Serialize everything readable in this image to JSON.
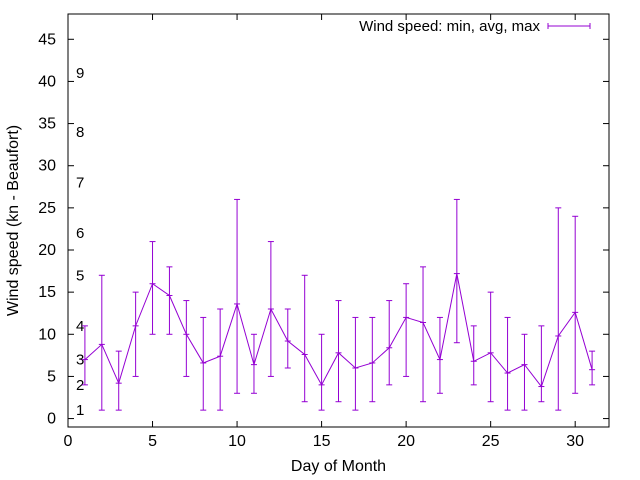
{
  "chart_data": {
    "type": "line",
    "title": "",
    "xlabel": "Day of Month",
    "ylabel": "Wind speed (kn - Beaufort)",
    "xlim": [
      0,
      32
    ],
    "ylim": [
      -1,
      48
    ],
    "xticks": [
      0,
      5,
      10,
      15,
      20,
      25,
      30
    ],
    "yticks": [
      0,
      5,
      10,
      15,
      20,
      25,
      30,
      35,
      40,
      45
    ],
    "grid": false,
    "legend_position": "top-right",
    "colors": {
      "series": "#9400d3",
      "axis": "#000000"
    },
    "series": [
      {
        "name": "Wind speed: min, avg, max",
        "x": [
          1,
          2,
          3,
          4,
          5,
          6,
          7,
          8,
          9,
          10,
          11,
          12,
          13,
          14,
          15,
          16,
          17,
          18,
          19,
          20,
          21,
          22,
          23,
          24,
          25,
          26,
          27,
          28,
          29,
          30,
          31
        ],
        "avg": [
          7.0,
          8.8,
          4.2,
          11,
          16,
          14.6,
          10,
          6.6,
          7.4,
          13.6,
          6.4,
          13,
          9.2,
          7.6,
          4.0,
          7.8,
          6.0,
          6.6,
          8.4,
          12.0,
          11.4,
          7.0,
          17.2,
          6.8,
          7.8,
          5.4,
          6.4,
          3.8,
          9.8,
          12.6,
          5.8
        ],
        "min": [
          4,
          1,
          1,
          5,
          10,
          10,
          5,
          1,
          1,
          3,
          3,
          5,
          6,
          2,
          1,
          2,
          1,
          2,
          4,
          5,
          2,
          3,
          9,
          4,
          2,
          1,
          1,
          2,
          1,
          3,
          4
        ],
        "max": [
          11,
          17,
          8,
          15,
          21,
          18,
          14,
          12,
          13,
          26,
          10,
          21,
          13,
          17,
          10,
          14,
          12,
          12,
          14,
          16,
          18,
          12,
          26,
          11,
          15,
          12,
          10,
          11,
          25,
          24,
          8
        ]
      }
    ],
    "annotations": [
      {
        "text": "1",
        "y": 1
      },
      {
        "text": "2",
        "y": 4
      },
      {
        "text": "3",
        "y": 7
      },
      {
        "text": "4",
        "y": 11
      },
      {
        "text": "5",
        "y": 17
      },
      {
        "text": "6",
        "y": 22
      },
      {
        "text": "7",
        "y": 28
      },
      {
        "text": "8",
        "y": 34
      },
      {
        "text": "9",
        "y": 41
      }
    ]
  }
}
